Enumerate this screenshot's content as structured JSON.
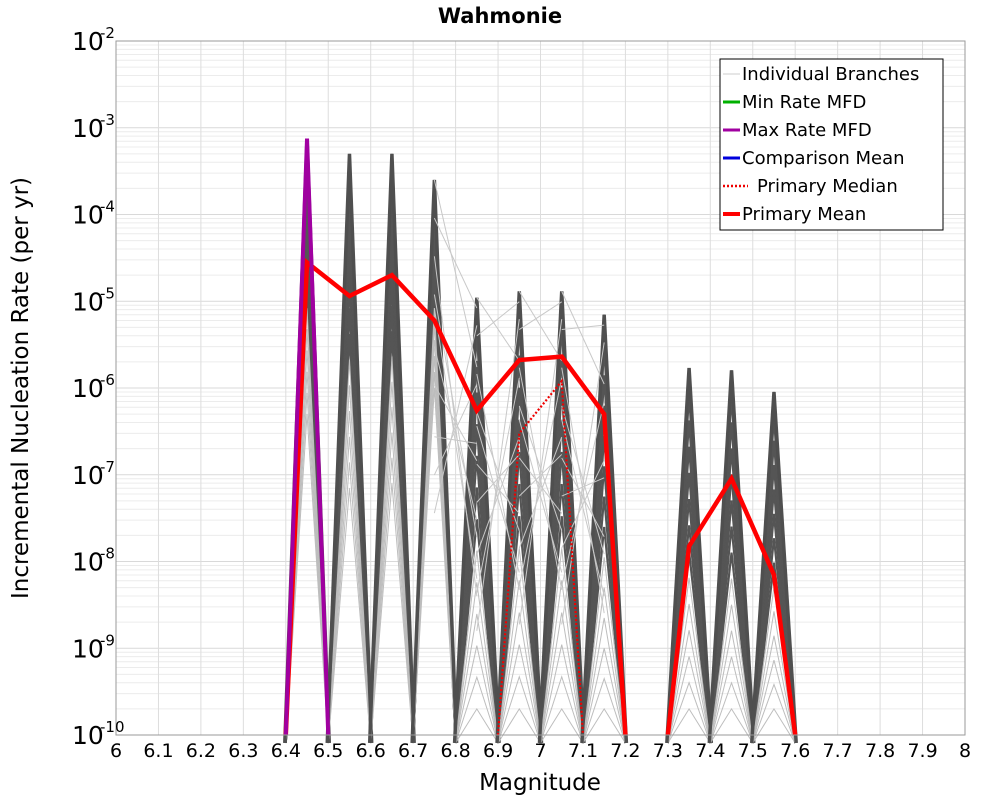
{
  "chart_data": {
    "type": "line",
    "title": "Wahmonie",
    "xlabel": "Magnitude",
    "ylabel": "Incremental Nucleation Rate (per yr)",
    "xlim": [
      6.0,
      8.0
    ],
    "ylim": [
      1e-10,
      0.01
    ],
    "yscale": "log",
    "grid": true,
    "legend_position": "top-right",
    "x_ticks": [
      "6",
      "6.1",
      "6.2",
      "6.3",
      "6.4",
      "6.5",
      "6.6",
      "6.7",
      "6.8",
      "6.9",
      "7",
      "7.1",
      "7.2",
      "7.3",
      "7.4",
      "7.5",
      "7.6",
      "7.7",
      "7.8",
      "7.9",
      "8"
    ],
    "y_ticks": [
      {
        "base": "10",
        "exp": "-10"
      },
      {
        "base": "10",
        "exp": "-9"
      },
      {
        "base": "10",
        "exp": "-8"
      },
      {
        "base": "10",
        "exp": "-7"
      },
      {
        "base": "10",
        "exp": "-6"
      },
      {
        "base": "10",
        "exp": "-5"
      },
      {
        "base": "10",
        "exp": "-4"
      },
      {
        "base": "10",
        "exp": "-3"
      },
      {
        "base": "10",
        "exp": "-2"
      }
    ],
    "legend": [
      {
        "label": "Individual Branches",
        "color": "#cccccc",
        "style": "thin"
      },
      {
        "label": "Min Rate MFD",
        "color": "#00b000",
        "style": "solid"
      },
      {
        "label": "Max Rate MFD",
        "color": "#a000a0",
        "style": "solid"
      },
      {
        "label": "Comparison Mean",
        "color": "#0000dd",
        "style": "solid"
      },
      {
        "label": "Primary Median",
        "color": "#ee0000",
        "style": "dotted"
      },
      {
        "label": "Primary Mean",
        "color": "#ff0000",
        "style": "thick"
      }
    ],
    "series": [
      {
        "name": "Primary Mean",
        "color": "#ff0000",
        "points": [
          [
            6.4,
            1e-10
          ],
          [
            6.45,
            2.8e-05
          ],
          [
            6.55,
            1.15e-05
          ],
          [
            6.65,
            2e-05
          ],
          [
            6.75,
            6e-06
          ],
          [
            6.85,
            5.5e-07
          ],
          [
            6.95,
            2.1e-06
          ],
          [
            7.05,
            2.3e-06
          ],
          [
            7.15,
            5e-07
          ],
          [
            7.2,
            1e-10
          ]
        ]
      },
      {
        "name": "Primary Mean",
        "color": "#ff0000",
        "points": [
          [
            7.3,
            1e-10
          ],
          [
            7.35,
            1.5e-08
          ],
          [
            7.45,
            9e-08
          ],
          [
            7.55,
            7e-09
          ],
          [
            7.6,
            1e-10
          ]
        ]
      },
      {
        "name": "Primary Median",
        "color": "#ee0000",
        "points": [
          [
            6.9,
            1e-10
          ],
          [
            6.95,
            3e-07
          ],
          [
            7.05,
            1.2e-06
          ],
          [
            7.1,
            1e-10
          ]
        ]
      },
      {
        "name": "Max Rate MFD",
        "color": "#a000a0",
        "points": [
          [
            6.4,
            1e-10
          ],
          [
            6.45,
            0.00075
          ],
          [
            6.5,
            1e-10
          ]
        ]
      }
    ],
    "branch_peaks": [
      {
        "x": 6.45,
        "y_max": 0.00075,
        "y_min": 5e-07
      },
      {
        "x": 6.55,
        "y_max": 0.0005,
        "y_min": 7e-08
      },
      {
        "x": 6.65,
        "y_max": 0.0005,
        "y_min": 8e-08
      },
      {
        "x": 6.75,
        "y_max": 0.00025,
        "y_min": 1e-06
      },
      {
        "x": 6.85,
        "y_max": 1.1e-05,
        "y_min": 1e-10
      },
      {
        "x": 6.95,
        "y_max": 1.3e-05,
        "y_min": 1e-10
      },
      {
        "x": 7.05,
        "y_max": 1.3e-05,
        "y_min": 1e-10
      },
      {
        "x": 7.15,
        "y_max": 7e-06,
        "y_min": 1e-10
      },
      {
        "x": 7.35,
        "y_max": 1.7e-06,
        "y_min": 1e-10
      },
      {
        "x": 7.45,
        "y_max": 1.6e-06,
        "y_min": 1e-10
      },
      {
        "x": 7.55,
        "y_max": 9e-07,
        "y_min": 1e-10
      }
    ]
  }
}
